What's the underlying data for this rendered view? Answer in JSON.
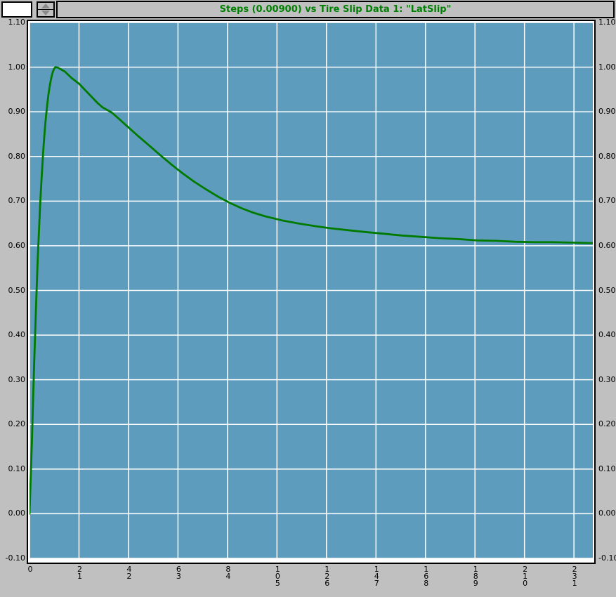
{
  "header": {
    "title": "Steps (0.00900) vs Tire Slip Data 1: \"LatSlip\"",
    "value_box_value": ""
  },
  "colors": {
    "window_bg": "#c0c0c0",
    "plot_bg": "#5e9cbd",
    "grid": "#ffffff",
    "curve": "#007b00",
    "title_text": "#008000",
    "label_text": "#000000"
  },
  "chart_data": {
    "type": "line",
    "title": "Steps (0.00900) vs Tire Slip Data 1: \"LatSlip\"",
    "xlabel": "Steps (0.00900)",
    "ylabel": "Tire Slip Data 1: \"LatSlip\"",
    "xlim": [
      0,
      239
    ],
    "ylim": [
      -0.1,
      1.1
    ],
    "grid": true,
    "legend": false,
    "x_axis": {
      "ticks": [
        0,
        21,
        42,
        63,
        84,
        105,
        126,
        147,
        168,
        189,
        210,
        231
      ],
      "labels": [
        "0",
        "21",
        "42",
        "63",
        "84",
        "105",
        "126",
        "147",
        "168",
        "189",
        "210",
        "231"
      ],
      "label_orientation": "vertical-stacked"
    },
    "y_axis": {
      "ticks": [
        1.1,
        1.0,
        0.9,
        0.8,
        0.7,
        0.6,
        0.5,
        0.4,
        0.3,
        0.2,
        0.1,
        0.0,
        -0.1
      ],
      "labels": [
        "1.10",
        "1.00",
        "0.90",
        "0.80",
        "0.70",
        "0.60",
        "0.50",
        "0.40",
        "0.30",
        "0.20",
        "0.10",
        "0.00",
        "-0.10"
      ],
      "sides": [
        "left",
        "right"
      ]
    },
    "series": [
      {
        "name": "LatSlip",
        "color": "#007b00",
        "points": [
          [
            0,
            0.0
          ],
          [
            0.5,
            0.08
          ],
          [
            1,
            0.16
          ],
          [
            1.5,
            0.25
          ],
          [
            2,
            0.34
          ],
          [
            2.5,
            0.42
          ],
          [
            3,
            0.5
          ],
          [
            3.5,
            0.57
          ],
          [
            4,
            0.63
          ],
          [
            4.5,
            0.69
          ],
          [
            5,
            0.74
          ],
          [
            5.5,
            0.785
          ],
          [
            6,
            0.825
          ],
          [
            6.5,
            0.86
          ],
          [
            7,
            0.89
          ],
          [
            7.5,
            0.915
          ],
          [
            8,
            0.937
          ],
          [
            8.5,
            0.955
          ],
          [
            9,
            0.97
          ],
          [
            9.5,
            0.982
          ],
          [
            10,
            0.991
          ],
          [
            10.5,
            0.997
          ],
          [
            11,
            1.0
          ],
          [
            12,
            0.999
          ],
          [
            13,
            0.996
          ],
          [
            14,
            0.993
          ],
          [
            15,
            0.99
          ],
          [
            16,
            0.985
          ],
          [
            17,
            0.98
          ],
          [
            18,
            0.975
          ],
          [
            19,
            0.971
          ],
          [
            20,
            0.967
          ],
          [
            21,
            0.963
          ],
          [
            23,
            0.952
          ],
          [
            25,
            0.941
          ],
          [
            27,
            0.93
          ],
          [
            29,
            0.919
          ],
          [
            31,
            0.91
          ],
          [
            33,
            0.904
          ],
          [
            35,
            0.898
          ],
          [
            38,
            0.884
          ],
          [
            42,
            0.865
          ],
          [
            46,
            0.846
          ],
          [
            50,
            0.828
          ],
          [
            55,
            0.805
          ],
          [
            60,
            0.783
          ],
          [
            65,
            0.762
          ],
          [
            70,
            0.743
          ],
          [
            75,
            0.726
          ],
          [
            80,
            0.71
          ],
          [
            85,
            0.696
          ],
          [
            90,
            0.684
          ],
          [
            95,
            0.674
          ],
          [
            100,
            0.666
          ],
          [
            107,
            0.657
          ],
          [
            114,
            0.65
          ],
          [
            121,
            0.644
          ],
          [
            128,
            0.639
          ],
          [
            135,
            0.635
          ],
          [
            142,
            0.631
          ],
          [
            150,
            0.627
          ],
          [
            158,
            0.623
          ],
          [
            166,
            0.62
          ],
          [
            174,
            0.617
          ],
          [
            182,
            0.615
          ],
          [
            190,
            0.612
          ],
          [
            198,
            0.611
          ],
          [
            206,
            0.609
          ],
          [
            214,
            0.608
          ],
          [
            222,
            0.608
          ],
          [
            231,
            0.607
          ],
          [
            239,
            0.606
          ]
        ]
      }
    ]
  }
}
